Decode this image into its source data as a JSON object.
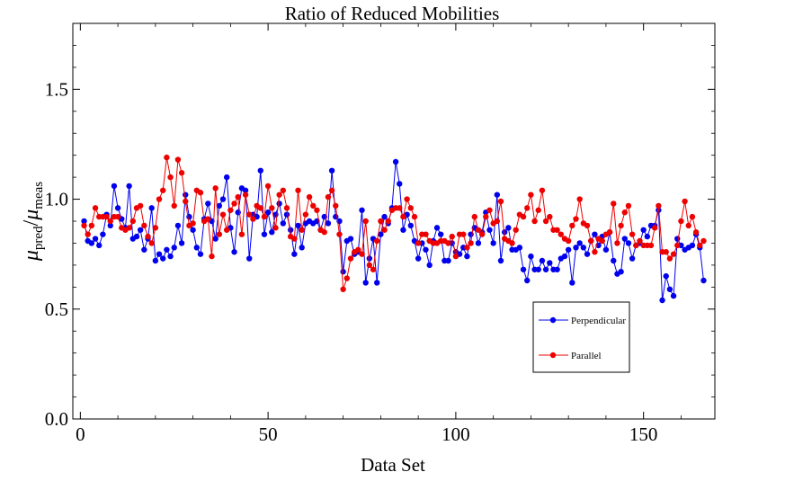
{
  "chart_data": {
    "type": "line",
    "title": "Ratio of Reduced Mobilities",
    "xlabel": "Data Set",
    "ylabel": {
      "base": "μ",
      "num_sub": "pred",
      "den_sub": "meas"
    },
    "xlim": [
      -2,
      169
    ],
    "ylim": [
      0.0,
      1.8
    ],
    "x_ticks": [
      0,
      50,
      100,
      150
    ],
    "y_ticks": [
      0.0,
      0.5,
      1.0,
      1.5
    ],
    "x_tick_labels": [
      "0",
      "50",
      "100",
      "150"
    ],
    "y_tick_labels": [
      "0.0",
      "0.5",
      "1.0",
      "1.5"
    ],
    "legend_position": "lower-right",
    "series": [
      {
        "name": "Perpendicular",
        "color": "#0000ee",
        "x": [
          1,
          2,
          3,
          4,
          5,
          6,
          7,
          8,
          9,
          10,
          11,
          12,
          13,
          14,
          15,
          16,
          17,
          18,
          19,
          20,
          21,
          22,
          23,
          24,
          25,
          26,
          27,
          28,
          29,
          30,
          31,
          32,
          33,
          34,
          35,
          36,
          37,
          38,
          39,
          40,
          41,
          42,
          43,
          44,
          45,
          46,
          47,
          48,
          49,
          50,
          51,
          52,
          53,
          54,
          55,
          56,
          57,
          58,
          59,
          60,
          61,
          62,
          63,
          64,
          65,
          66,
          67,
          68,
          69,
          70,
          71,
          72,
          73,
          74,
          75,
          76,
          77,
          78,
          79,
          80,
          81,
          82,
          83,
          84,
          85,
          86,
          87,
          88,
          89,
          90,
          91,
          92,
          93,
          94,
          95,
          96,
          97,
          98,
          99,
          100,
          101,
          102,
          103,
          104,
          105,
          106,
          107,
          108,
          109,
          110,
          111,
          112,
          113,
          114,
          115,
          116,
          117,
          118,
          119,
          120,
          121,
          122,
          123,
          124,
          125,
          126,
          127,
          128,
          129,
          130,
          131,
          132,
          133,
          134,
          135,
          136,
          137,
          138,
          139,
          140,
          141,
          142,
          143,
          144,
          145,
          146,
          147,
          148,
          149,
          150,
          151,
          152,
          153,
          154,
          155,
          156,
          157,
          158,
          159,
          160,
          161,
          162,
          163,
          164,
          165,
          166
        ],
        "y": [
          0.9,
          0.81,
          0.8,
          0.82,
          0.79,
          0.84,
          0.93,
          0.88,
          1.06,
          0.96,
          0.91,
          0.87,
          1.06,
          0.82,
          0.83,
          0.86,
          0.77,
          0.82,
          0.96,
          0.72,
          0.75,
          0.73,
          0.77,
          0.74,
          0.78,
          0.88,
          0.8,
          1.02,
          0.92,
          0.86,
          0.78,
          0.75,
          0.91,
          0.98,
          0.9,
          0.82,
          0.97,
          1.0,
          1.1,
          0.87,
          0.76,
          0.94,
          1.05,
          1.04,
          0.73,
          0.93,
          0.92,
          1.13,
          0.84,
          0.94,
          0.85,
          0.93,
          0.98,
          0.89,
          0.93,
          0.86,
          0.75,
          0.88,
          0.78,
          0.89,
          0.9,
          0.89,
          0.9,
          0.86,
          0.92,
          0.89,
          1.13,
          0.92,
          0.9,
          0.67,
          0.81,
          0.82,
          0.75,
          0.76,
          0.95,
          0.62,
          0.73,
          0.82,
          0.62,
          0.84,
          0.92,
          0.89,
          0.96,
          1.17,
          1.07,
          0.86,
          0.93,
          0.88,
          0.81,
          0.73,
          0.8,
          0.77,
          0.7,
          0.81,
          0.87,
          0.84,
          0.72,
          0.72,
          0.8,
          0.76,
          0.75,
          0.78,
          0.74,
          0.84,
          0.87,
          0.8,
          0.85,
          0.94,
          0.86,
          0.8,
          1.02,
          0.72,
          0.85,
          0.87,
          0.77,
          0.77,
          0.78,
          0.68,
          0.63,
          0.74,
          0.68,
          0.68,
          0.72,
          0.68,
          0.71,
          0.68,
          0.68,
          0.73,
          0.74,
          0.77,
          0.62,
          0.78,
          0.8,
          0.78,
          0.75,
          0.81,
          0.84,
          0.79,
          0.83,
          0.77,
          0.85,
          0.72,
          0.66,
          0.67,
          0.82,
          0.8,
          0.73,
          0.79,
          0.8,
          0.86,
          0.83,
          0.88,
          0.88,
          0.95,
          0.54,
          0.65,
          0.59,
          0.56,
          0.82,
          0.79,
          0.77,
          0.78,
          0.79,
          0.84,
          0.78,
          0.63
        ]
      },
      {
        "name": "Parallel",
        "color": "#ee0000",
        "x": [
          1,
          2,
          3,
          4,
          5,
          6,
          7,
          8,
          9,
          10,
          11,
          12,
          13,
          14,
          15,
          16,
          17,
          18,
          19,
          20,
          21,
          22,
          23,
          24,
          25,
          26,
          27,
          28,
          29,
          30,
          31,
          32,
          33,
          34,
          35,
          36,
          37,
          38,
          39,
          40,
          41,
          42,
          43,
          44,
          45,
          46,
          47,
          48,
          49,
          50,
          51,
          52,
          53,
          54,
          55,
          56,
          57,
          58,
          59,
          60,
          61,
          62,
          63,
          64,
          65,
          66,
          67,
          68,
          69,
          70,
          71,
          72,
          73,
          74,
          75,
          76,
          77,
          78,
          79,
          80,
          81,
          82,
          83,
          84,
          85,
          86,
          87,
          88,
          89,
          90,
          91,
          92,
          93,
          94,
          95,
          96,
          97,
          98,
          99,
          100,
          101,
          102,
          103,
          104,
          105,
          106,
          107,
          108,
          109,
          110,
          111,
          112,
          113,
          114,
          115,
          116,
          117,
          118,
          119,
          120,
          121,
          122,
          123,
          124,
          125,
          126,
          127,
          128,
          129,
          130,
          131,
          132,
          133,
          134,
          135,
          136,
          137,
          138,
          139,
          140,
          141,
          142,
          143,
          144,
          145,
          146,
          147,
          148,
          149,
          150,
          151,
          152,
          153,
          154,
          155,
          156,
          157,
          158,
          159,
          160,
          161,
          162,
          163,
          164,
          165,
          166
        ],
        "y": [
          0.88,
          0.84,
          0.88,
          0.96,
          0.92,
          0.92,
          0.92,
          0.9,
          0.92,
          0.92,
          0.87,
          0.86,
          0.87,
          0.9,
          0.96,
          0.97,
          0.88,
          0.83,
          0.8,
          0.87,
          1.0,
          1.04,
          1.19,
          1.1,
          0.97,
          1.18,
          1.12,
          0.99,
          0.88,
          0.89,
          1.04,
          1.03,
          0.9,
          0.91,
          0.74,
          1.05,
          0.84,
          0.93,
          0.86,
          0.95,
          0.98,
          1.01,
          0.84,
          1.02,
          0.93,
          0.91,
          0.97,
          0.96,
          0.92,
          1.06,
          0.96,
          0.87,
          1.02,
          1.04,
          0.96,
          0.83,
          0.82,
          1.04,
          0.86,
          0.93,
          1.01,
          0.97,
          0.95,
          0.86,
          0.85,
          1.01,
          1.04,
          0.97,
          0.84,
          0.59,
          0.64,
          0.73,
          0.76,
          0.77,
          0.75,
          0.9,
          0.7,
          0.68,
          0.81,
          0.9,
          0.86,
          0.9,
          0.95,
          0.96,
          0.96,
          0.92,
          1.0,
          0.96,
          0.92,
          0.8,
          0.84,
          0.84,
          0.81,
          0.8,
          0.8,
          0.81,
          0.81,
          0.8,
          0.83,
          0.74,
          0.84,
          0.84,
          0.78,
          0.8,
          0.92,
          0.86,
          0.84,
          0.92,
          0.95,
          0.89,
          0.9,
          0.99,
          0.82,
          0.81,
          0.8,
          0.86,
          0.93,
          0.92,
          0.96,
          1.02,
          0.9,
          0.95,
          1.04,
          0.9,
          0.92,
          0.86,
          0.86,
          0.84,
          0.82,
          0.81,
          0.88,
          0.91,
          1.0,
          0.89,
          0.88,
          0.81,
          0.76,
          0.82,
          0.81,
          0.84,
          0.85,
          0.98,
          0.8,
          0.88,
          0.94,
          0.97,
          0.84,
          0.79,
          0.81,
          0.79,
          0.79,
          0.79,
          0.87,
          0.97,
          0.76,
          0.76,
          0.73,
          0.75,
          0.79,
          0.9,
          0.99,
          0.88,
          0.92,
          0.85,
          0.79,
          0.81
        ]
      }
    ]
  }
}
